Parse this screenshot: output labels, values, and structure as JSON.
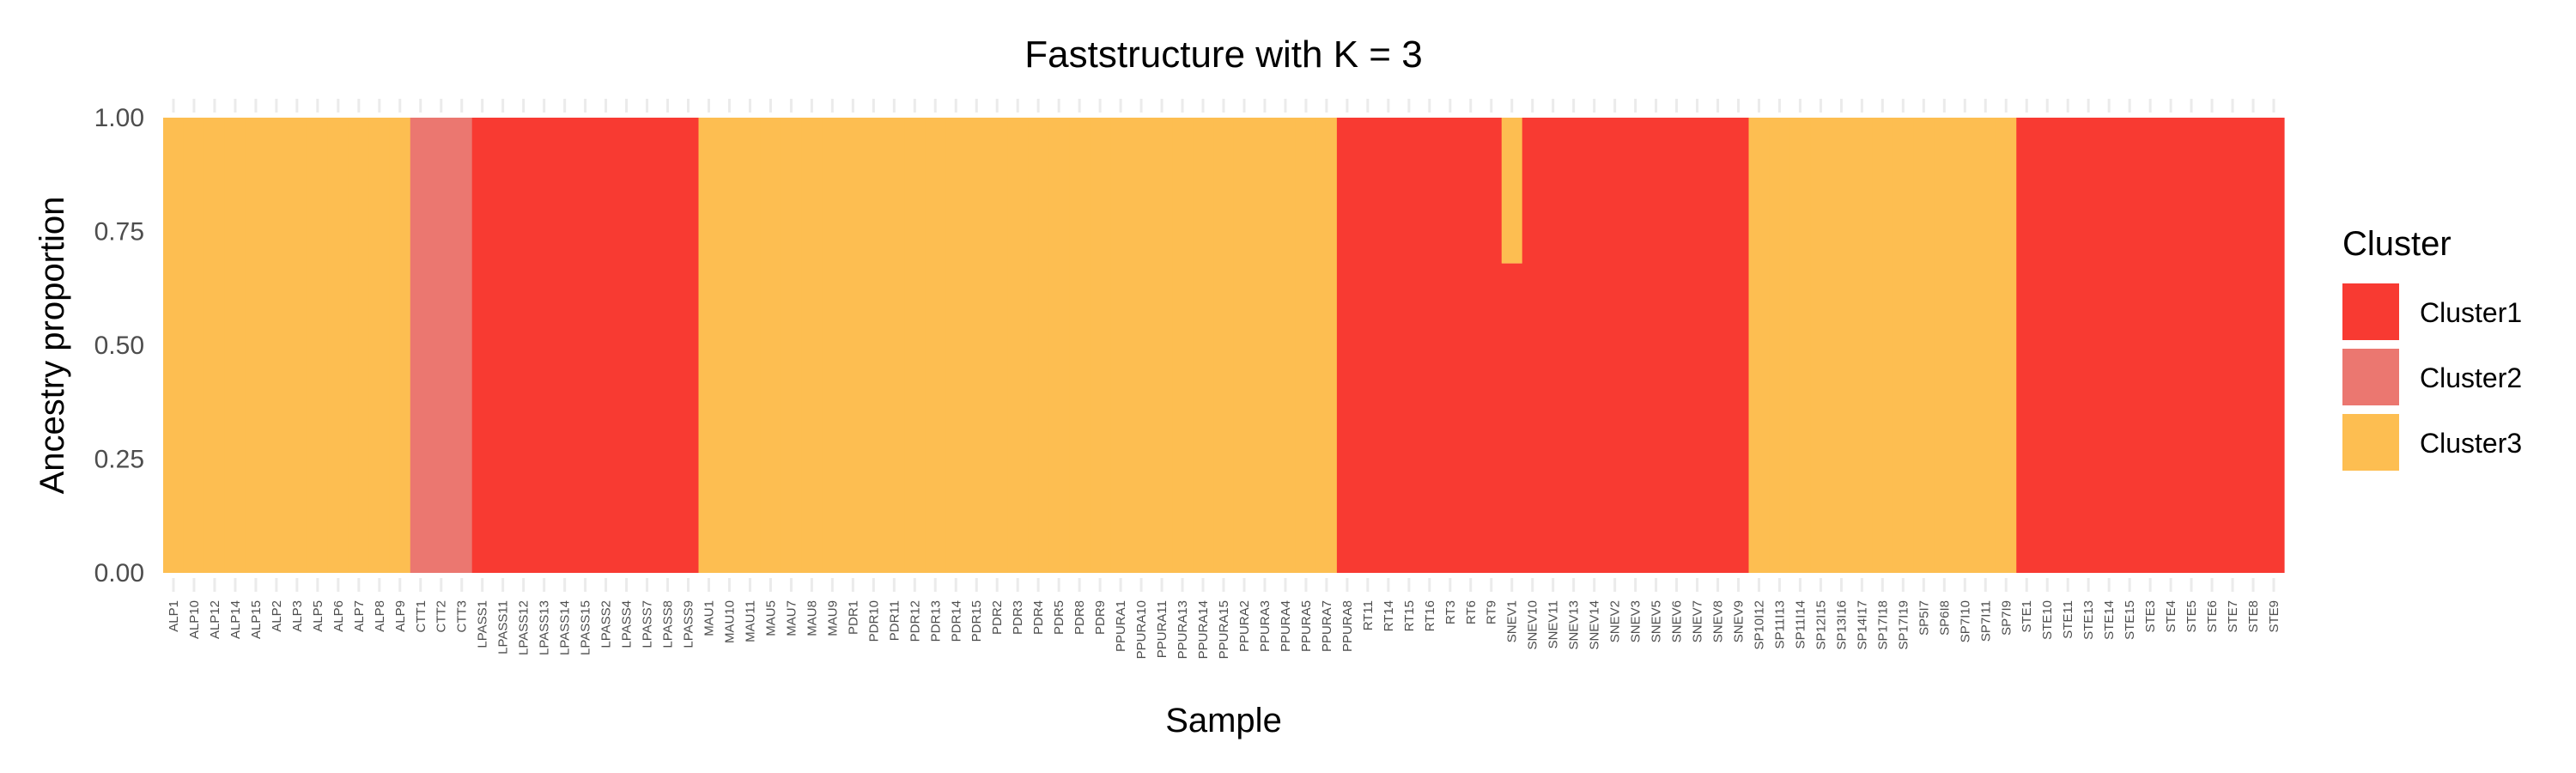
{
  "chart_data": {
    "type": "bar",
    "stacked": true,
    "title": "Faststructure with K = 3",
    "xlabel": "Sample",
    "ylabel": "Ancestry proportion",
    "ylim": [
      0,
      1
    ],
    "yticks": [
      "0.00",
      "0.25",
      "0.50",
      "0.75",
      "1.00"
    ],
    "grid": "major ticks only",
    "legend": {
      "title": "Cluster",
      "position": "right",
      "entries": [
        {
          "name": "Cluster1",
          "color": "#F83A32"
        },
        {
          "name": "Cluster2",
          "color": "#EB7770"
        },
        {
          "name": "Cluster3",
          "color": "#FDBE51"
        }
      ]
    },
    "categories": [
      "ALP1",
      "ALP10",
      "ALP12",
      "ALP14",
      "ALP15",
      "ALP2",
      "ALP3",
      "ALP5",
      "ALP6",
      "ALP7",
      "ALP8",
      "ALP9",
      "CTT1",
      "CTT2",
      "CTT3",
      "LPASS1",
      "LPASS11",
      "LPASS12",
      "LPASS13",
      "LPASS14",
      "LPASS15",
      "LPASS2",
      "LPASS4",
      "LPASS7",
      "LPASS8",
      "LPASS9",
      "MAU1",
      "MAU10",
      "MAU11",
      "MAU5",
      "MAU7",
      "MAU8",
      "MAU9",
      "PDR1",
      "PDR10",
      "PDR11",
      "PDR12",
      "PDR13",
      "PDR14",
      "PDR15",
      "PDR2",
      "PDR3",
      "PDR4",
      "PDR5",
      "PDR8",
      "PDR9",
      "PPURA1",
      "PPURA10",
      "PPURA11",
      "PPURA13",
      "PPURA14",
      "PPURA15",
      "PPURA2",
      "PPURA3",
      "PPURA4",
      "PPURA5",
      "PPURA7",
      "PPURA8",
      "RT11",
      "RT14",
      "RT15",
      "RT16",
      "RT3",
      "RT6",
      "RT9",
      "SNEV1",
      "SNEV10",
      "SNEV11",
      "SNEV13",
      "SNEV14",
      "SNEV2",
      "SNEV3",
      "SNEV5",
      "SNEV6",
      "SNEV7",
      "SNEV8",
      "SNEV9",
      "SP10I12",
      "SP11I13",
      "SP11I14",
      "SP12I15",
      "SP13I16",
      "SP14I17",
      "SP17I18",
      "SP17I19",
      "SP5I7",
      "SP6I8",
      "SP7I10",
      "SP7I11",
      "SP7I9",
      "STE1",
      "STE10",
      "STE11",
      "STE13",
      "STE14",
      "STE15",
      "STE3",
      "STE4",
      "STE5",
      "STE6",
      "STE7",
      "STE8",
      "STE9"
    ],
    "series": [
      {
        "name": "Cluster1",
        "values": [
          0,
          0,
          0,
          0,
          0,
          0,
          0,
          0,
          0,
          0,
          0,
          0,
          0,
          0,
          0,
          1,
          1,
          1,
          1,
          1,
          1,
          1,
          1,
          1,
          1,
          1,
          0,
          0,
          0,
          0,
          0,
          0,
          0,
          0,
          0,
          0,
          0,
          0,
          0,
          0,
          0,
          0,
          0,
          0,
          0,
          0,
          0,
          0,
          0,
          0,
          0,
          0,
          0,
          0,
          0,
          0,
          0,
          1,
          1,
          1,
          1,
          1,
          1,
          1,
          1,
          0.68,
          1,
          1,
          1,
          1,
          1,
          1,
          1,
          1,
          1,
          1,
          1,
          0,
          0,
          0,
          0,
          0,
          0,
          0,
          0,
          0,
          0,
          0,
          0,
          0,
          1,
          1,
          1,
          1,
          1,
          1,
          1,
          1,
          1,
          1,
          1,
          1,
          1
        ]
      },
      {
        "name": "Cluster2",
        "values": [
          0,
          0,
          0,
          0,
          0,
          0,
          0,
          0,
          0,
          0,
          0,
          0,
          1,
          1,
          1,
          0,
          0,
          0,
          0,
          0,
          0,
          0,
          0,
          0,
          0,
          0,
          0,
          0,
          0,
          0,
          0,
          0,
          0,
          0,
          0,
          0,
          0,
          0,
          0,
          0,
          0,
          0,
          0,
          0,
          0,
          0,
          0,
          0,
          0,
          0,
          0,
          0,
          0,
          0,
          0,
          0,
          0,
          0,
          0,
          0,
          0,
          0,
          0,
          0,
          0,
          0,
          0,
          0,
          0,
          0,
          0,
          0,
          0,
          0,
          0,
          0,
          0,
          0,
          0,
          0,
          0,
          0,
          0,
          0,
          0,
          0,
          0,
          0,
          0,
          0,
          0,
          0,
          0,
          0,
          0,
          0,
          0,
          0,
          0,
          0,
          0,
          0,
          0
        ]
      },
      {
        "name": "Cluster3",
        "values": [
          1,
          1,
          1,
          1,
          1,
          1,
          1,
          1,
          1,
          1,
          1,
          1,
          0,
          0,
          0,
          0,
          0,
          0,
          0,
          0,
          0,
          0,
          0,
          0,
          0,
          0,
          1,
          1,
          1,
          1,
          1,
          1,
          1,
          1,
          1,
          1,
          1,
          1,
          1,
          1,
          1,
          1,
          1,
          1,
          1,
          1,
          1,
          1,
          1,
          1,
          1,
          1,
          1,
          1,
          1,
          1,
          1,
          0,
          0,
          0,
          0,
          0,
          0,
          0,
          0,
          0.32,
          0,
          0,
          0,
          0,
          0,
          0,
          0,
          0,
          0,
          0,
          0,
          1,
          1,
          1,
          1,
          1,
          1,
          1,
          1,
          1,
          1,
          1,
          1,
          1,
          0,
          0,
          0,
          0,
          0,
          0,
          0,
          0,
          0,
          0,
          0,
          0,
          0
        ]
      }
    ]
  }
}
